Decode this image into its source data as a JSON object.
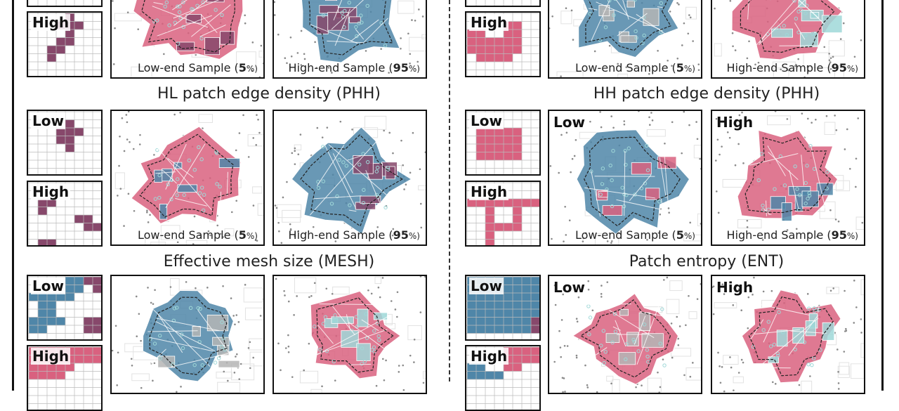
{
  "colors": {
    "pink": "#d9617f",
    "blue": "#4f86a8",
    "purple": "#87486b",
    "gray": "#b5b5b5",
    "cyan": "#9fd8d8",
    "dark": "#111111"
  },
  "panels": {
    "hl_top": {
      "high_label": "High",
      "low_caption_prefix": "Low-end Sample (",
      "low_caption_value": "5",
      "low_caption_suffix": "%)",
      "high_caption_prefix": "High-end Sample (",
      "high_caption_value": "95",
      "high_caption_suffix": "%)"
    },
    "hh_top": {
      "high_label": "High",
      "low_caption_prefix": "Low-end Sample (",
      "low_caption_value": "5",
      "low_caption_suffix": "%)",
      "high_caption_prefix": "High-end Sample (",
      "high_caption_value": "95",
      "high_caption_suffix": "%)"
    },
    "hl_edge": {
      "title": "HL patch edge density (PHH)",
      "low_label": "Low",
      "high_label": "High",
      "low_caption_prefix": "Low-end Sample (",
      "low_caption_value": "5",
      "low_caption_suffix": "%)",
      "high_caption_prefix": "High-end Sample (",
      "high_caption_value": "95",
      "high_caption_suffix": "%)"
    },
    "hh_edge": {
      "title": "HH patch edge density (PHH)",
      "low_label": "Low",
      "high_label": "High",
      "map_low_title": "Low",
      "map_high_title": "High",
      "low_caption_prefix": "Low-end Sample (",
      "low_caption_value": "5",
      "low_caption_suffix": "%)",
      "high_caption_prefix": "High-end Sample (",
      "high_caption_value": "95",
      "high_caption_suffix": "%)"
    },
    "mesh": {
      "title": "Effective mesh size (MESH)",
      "low_label": "Low",
      "high_label": "High"
    },
    "ent": {
      "title": "Patch entropy (ENT)",
      "low_label": "Low",
      "high_label": "High",
      "map_low_title": "Low",
      "map_high_title": "High"
    }
  }
}
